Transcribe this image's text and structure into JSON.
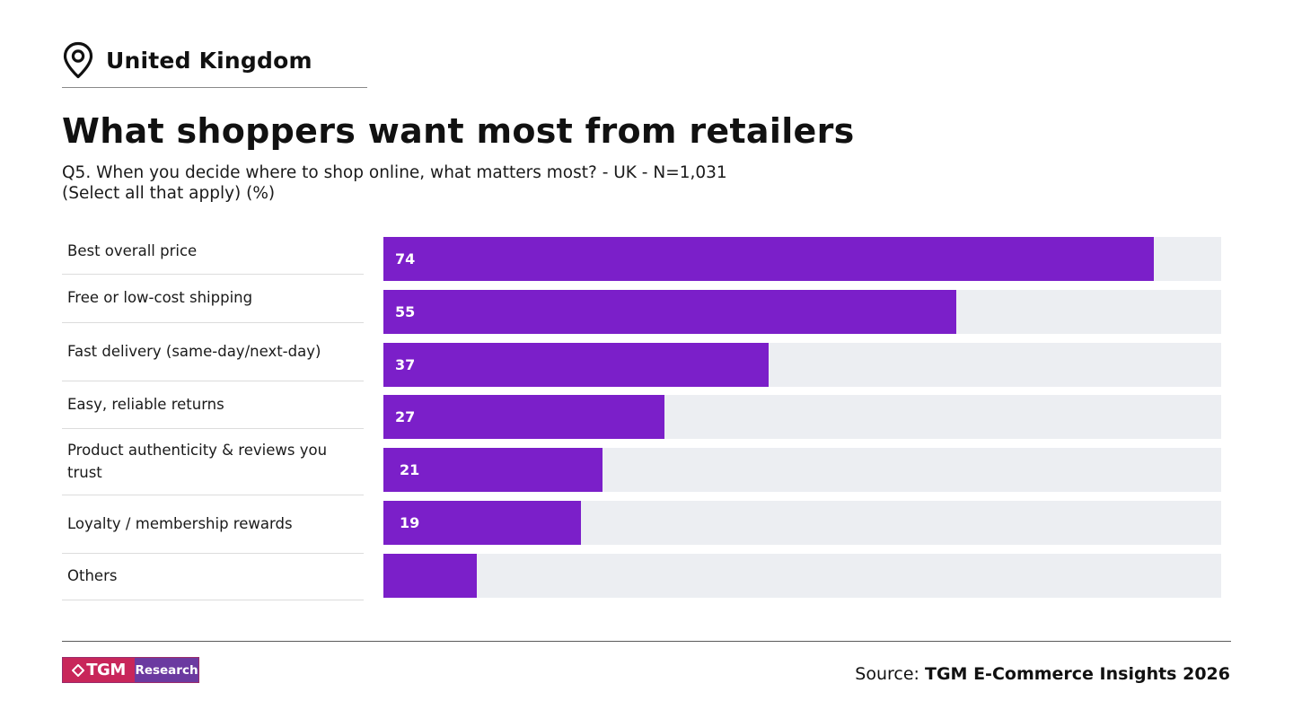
{
  "header": {
    "location": "United Kingdom",
    "location_icon": "map-pin-icon"
  },
  "title": "What shoppers want most from retailers",
  "subtitle_lines": [
    "Q5. When you decide where to shop online, what matters most? - UK - N=1,031",
    "(Select all that apply) (%)"
  ],
  "colors": {
    "bar": "#7b1fc9",
    "track": "#eceef2",
    "logo_pink": "#c8265a",
    "logo_purple": "#6b3aa0"
  },
  "chart_data": {
    "type": "bar",
    "orientation": "horizontal",
    "categories": [
      "Best overall price",
      "Free or low-cost shipping",
      "Fast delivery (same-day/next-day)",
      "Easy, reliable returns",
      "Product authenticity & reviews you trust",
      "Loyalty / membership rewards",
      "Others"
    ],
    "values": [
      74,
      55,
      37,
      27,
      21,
      19,
      9
    ],
    "value_labels": [
      "74",
      "55",
      "37",
      "27",
      "21",
      "19",
      ""
    ],
    "xlim": [
      0,
      80
    ],
    "grid": false,
    "legend": "none"
  },
  "footer": {
    "logo_left": "TGM",
    "logo_right": "Research",
    "source_prefix": "Source: ",
    "source_name": "TGM E-Commerce Insights 2026"
  }
}
